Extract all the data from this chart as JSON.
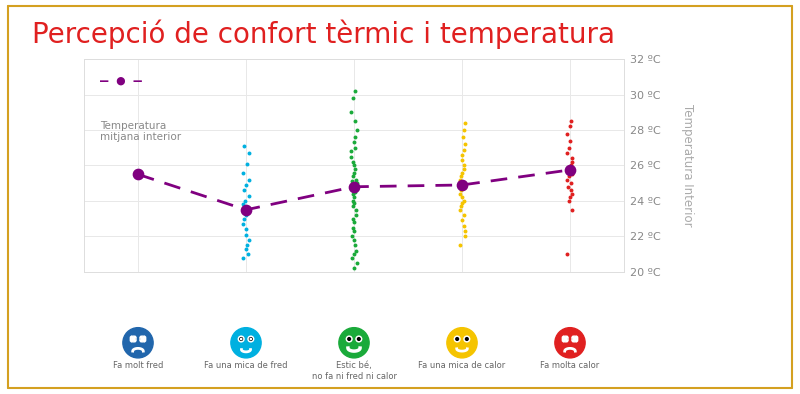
{
  "title": "Percepció de confort tèrmic i temperatura",
  "title_color": "#e02020",
  "title_fontsize": 20,
  "background_color": "#ffffff",
  "border_top_color": "#d4a020",
  "border_other_color": "#d4a020",
  "ylabel_right": "Temperatura Interior",
  "ylim": [
    20,
    32
  ],
  "yticks": [
    20,
    22,
    24,
    26,
    28,
    30,
    32
  ],
  "ytick_labels": [
    "20 ºC",
    "22 ºC",
    "24 ºC",
    "26 ºC",
    "28 ºC",
    "30 ºC",
    "32 ºC"
  ],
  "categories": [
    {
      "label": "Fa molt fred",
      "color": "#2166ac",
      "x": 0
    },
    {
      "label": "Fa una mica de fred",
      "color": "#00b0e0",
      "x": 1
    },
    {
      "label": "Estic bé,\nno fa ni fred ni calor",
      "color": "#1aaa3a",
      "x": 2
    },
    {
      "label": "Fa una mica de calor",
      "color": "#f5c400",
      "x": 3
    },
    {
      "label": "Fa molta calor",
      "color": "#e02020",
      "x": 4
    }
  ],
  "mean_line": [
    25.5,
    23.5,
    24.8,
    24.9,
    25.75
  ],
  "mean_color": "#800080",
  "scatter_data": [
    {
      "x": 0,
      "y": [],
      "color": "#2166ac"
    },
    {
      "x": 1,
      "y": [
        20.8,
        21.0,
        21.3,
        21.5,
        21.8,
        22.1,
        22.4,
        22.7,
        23.0,
        23.2,
        23.4,
        23.5,
        23.6,
        23.8,
        24.0,
        24.3,
        24.6,
        24.9,
        25.2,
        25.6,
        26.1,
        26.7,
        27.1
      ],
      "color": "#00b0e0"
    },
    {
      "x": 2,
      "y": [
        20.2,
        20.5,
        20.8,
        21.0,
        21.2,
        21.5,
        21.8,
        22.0,
        22.3,
        22.5,
        22.8,
        23.0,
        23.2,
        23.5,
        23.7,
        23.9,
        24.0,
        24.2,
        24.4,
        24.5,
        24.6,
        24.7,
        24.8,
        24.9,
        25.0,
        25.1,
        25.2,
        25.4,
        25.6,
        25.8,
        26.0,
        26.2,
        26.5,
        26.8,
        27.0,
        27.3,
        27.6,
        28.0,
        28.5,
        29.0,
        29.8,
        30.2
      ],
      "color": "#1aaa3a"
    },
    {
      "x": 3,
      "y": [
        21.5,
        22.0,
        22.3,
        22.6,
        22.9,
        23.2,
        23.5,
        23.7,
        23.9,
        24.0,
        24.2,
        24.4,
        24.6,
        24.8,
        25.0,
        25.2,
        25.4,
        25.6,
        25.8,
        26.0,
        26.3,
        26.6,
        26.9,
        27.2,
        27.6,
        28.0,
        28.4
      ],
      "color": "#f5c400"
    },
    {
      "x": 4,
      "y": [
        21.0,
        23.5,
        24.0,
        24.2,
        24.4,
        24.6,
        24.8,
        25.0,
        25.2,
        25.4,
        25.5,
        25.6,
        25.8,
        26.0,
        26.2,
        26.4,
        26.7,
        27.0,
        27.4,
        27.8,
        28.2,
        28.5
      ],
      "color": "#e02020"
    }
  ],
  "legend_label": "Temperatura\nmitjana interior",
  "legend_fontsize": 8,
  "grid_color": "#e8e8e8",
  "plot_bg_color": "#ffffff"
}
